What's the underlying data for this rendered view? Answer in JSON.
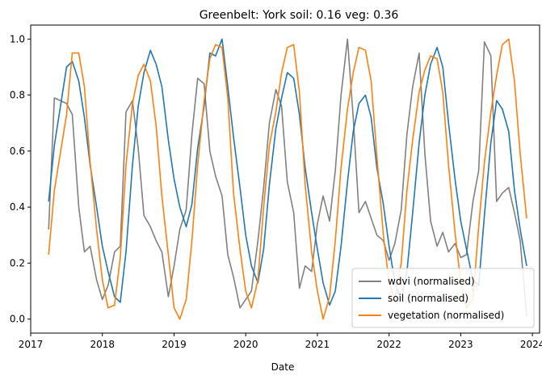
{
  "chart_data": {
    "type": "line",
    "title": "Greenbelt: York soil: 0.16    veg: 0.36",
    "xlabel": "Date",
    "ylabel": "",
    "xlim": [
      2017.0,
      2024.1
    ],
    "ylim": [
      -0.05,
      1.05
    ],
    "x_ticks": [
      2017,
      2018,
      2019,
      2020,
      2021,
      2022,
      2023,
      2024
    ],
    "y_ticks": [
      0.0,
      0.2,
      0.4,
      0.6,
      0.8,
      1.0
    ],
    "x_tick_labels": [
      "2017",
      "2018",
      "2019",
      "2020",
      "2021",
      "2022",
      "2023",
      "2024"
    ],
    "y_tick_labels": [
      "0.0",
      "0.2",
      "0.4",
      "0.6",
      "0.8",
      "1.0"
    ],
    "grid": false,
    "legend_position": "lower-right",
    "series": [
      {
        "name": "wdvi (normalised)",
        "color": "#808080",
        "points": [
          [
            2017.25,
            0.32
          ],
          [
            2017.33,
            0.79
          ],
          [
            2017.5,
            0.77
          ],
          [
            2017.58,
            0.73
          ],
          [
            2017.67,
            0.4
          ],
          [
            2017.75,
            0.24
          ],
          [
            2017.83,
            0.26
          ],
          [
            2017.92,
            0.14
          ],
          [
            2018.0,
            0.07
          ],
          [
            2018.08,
            0.12
          ],
          [
            2018.17,
            0.24
          ],
          [
            2018.25,
            0.26
          ],
          [
            2018.33,
            0.74
          ],
          [
            2018.42,
            0.78
          ],
          [
            2018.5,
            0.61
          ],
          [
            2018.58,
            0.37
          ],
          [
            2018.67,
            0.33
          ],
          [
            2018.75,
            0.28
          ],
          [
            2018.83,
            0.24
          ],
          [
            2018.92,
            0.08
          ],
          [
            2019.0,
            0.19
          ],
          [
            2019.08,
            0.32
          ],
          [
            2019.17,
            0.39
          ],
          [
            2019.25,
            0.66
          ],
          [
            2019.33,
            0.86
          ],
          [
            2019.42,
            0.84
          ],
          [
            2019.5,
            0.6
          ],
          [
            2019.58,
            0.51
          ],
          [
            2019.67,
            0.44
          ],
          [
            2019.75,
            0.23
          ],
          [
            2019.83,
            0.15
          ],
          [
            2019.92,
            0.04
          ],
          [
            2020.0,
            0.07
          ],
          [
            2020.08,
            0.1
          ],
          [
            2020.17,
            0.28
          ],
          [
            2020.25,
            0.47
          ],
          [
            2020.33,
            0.7
          ],
          [
            2020.42,
            0.82
          ],
          [
            2020.5,
            0.76
          ],
          [
            2020.58,
            0.49
          ],
          [
            2020.67,
            0.38
          ],
          [
            2020.75,
            0.11
          ],
          [
            2020.83,
            0.19
          ],
          [
            2020.92,
            0.17
          ],
          [
            2021.0,
            0.34
          ],
          [
            2021.08,
            0.44
          ],
          [
            2021.17,
            0.35
          ],
          [
            2021.25,
            0.53
          ],
          [
            2021.33,
            0.8
          ],
          [
            2021.42,
            1.0
          ],
          [
            2021.5,
            0.72
          ],
          [
            2021.58,
            0.38
          ],
          [
            2021.67,
            0.42
          ],
          [
            2021.75,
            0.36
          ],
          [
            2021.83,
            0.3
          ],
          [
            2021.92,
            0.28
          ],
          [
            2022.0,
            0.21
          ],
          [
            2022.08,
            0.27
          ],
          [
            2022.17,
            0.39
          ],
          [
            2022.25,
            0.66
          ],
          [
            2022.33,
            0.83
          ],
          [
            2022.42,
            0.95
          ],
          [
            2022.5,
            0.59
          ],
          [
            2022.58,
            0.35
          ],
          [
            2022.67,
            0.26
          ],
          [
            2022.75,
            0.31
          ],
          [
            2022.83,
            0.24
          ],
          [
            2022.92,
            0.27
          ],
          [
            2023.0,
            0.22
          ],
          [
            2023.08,
            0.23
          ],
          [
            2023.17,
            0.42
          ],
          [
            2023.25,
            0.53
          ],
          [
            2023.33,
            0.99
          ],
          [
            2023.42,
            0.94
          ],
          [
            2023.5,
            0.42
          ],
          [
            2023.58,
            0.45
          ],
          [
            2023.67,
            0.47
          ],
          [
            2023.75,
            0.38
          ],
          [
            2023.83,
            0.28
          ],
          [
            2023.92,
            0.01
          ]
        ]
      },
      {
        "name": "soil (normalised)",
        "color": "#1f77b4",
        "points": [
          [
            2017.25,
            0.42
          ],
          [
            2017.33,
            0.62
          ],
          [
            2017.5,
            0.9
          ],
          [
            2017.58,
            0.92
          ],
          [
            2017.67,
            0.85
          ],
          [
            2017.75,
            0.72
          ],
          [
            2017.83,
            0.55
          ],
          [
            2017.92,
            0.4
          ],
          [
            2018.0,
            0.26
          ],
          [
            2018.08,
            0.17
          ],
          [
            2018.17,
            0.08
          ],
          [
            2018.25,
            0.06
          ],
          [
            2018.33,
            0.24
          ],
          [
            2018.42,
            0.55
          ],
          [
            2018.5,
            0.76
          ],
          [
            2018.58,
            0.88
          ],
          [
            2018.67,
            0.96
          ],
          [
            2018.75,
            0.91
          ],
          [
            2018.83,
            0.83
          ],
          [
            2018.92,
            0.64
          ],
          [
            2019.0,
            0.5
          ],
          [
            2019.08,
            0.4
          ],
          [
            2019.17,
            0.33
          ],
          [
            2019.25,
            0.41
          ],
          [
            2019.33,
            0.61
          ],
          [
            2019.42,
            0.76
          ],
          [
            2019.5,
            0.95
          ],
          [
            2019.58,
            0.94
          ],
          [
            2019.67,
            1.0
          ],
          [
            2019.75,
            0.83
          ],
          [
            2019.83,
            0.65
          ],
          [
            2019.92,
            0.47
          ],
          [
            2020.0,
            0.3
          ],
          [
            2020.08,
            0.19
          ],
          [
            2020.17,
            0.13
          ],
          [
            2020.25,
            0.25
          ],
          [
            2020.33,
            0.48
          ],
          [
            2020.42,
            0.68
          ],
          [
            2020.5,
            0.79
          ],
          [
            2020.58,
            0.88
          ],
          [
            2020.67,
            0.86
          ],
          [
            2020.75,
            0.73
          ],
          [
            2020.83,
            0.54
          ],
          [
            2020.92,
            0.38
          ],
          [
            2021.0,
            0.25
          ],
          [
            2021.08,
            0.13
          ],
          [
            2021.17,
            0.05
          ],
          [
            2021.25,
            0.1
          ],
          [
            2021.33,
            0.26
          ],
          [
            2021.42,
            0.49
          ],
          [
            2021.5,
            0.67
          ],
          [
            2021.58,
            0.77
          ],
          [
            2021.67,
            0.8
          ],
          [
            2021.75,
            0.72
          ],
          [
            2021.83,
            0.54
          ],
          [
            2021.92,
            0.41
          ],
          [
            2022.0,
            0.26
          ],
          [
            2022.08,
            0.13
          ],
          [
            2022.17,
            0.07
          ],
          [
            2022.25,
            0.17
          ],
          [
            2022.33,
            0.38
          ],
          [
            2022.42,
            0.63
          ],
          [
            2022.5,
            0.8
          ],
          [
            2022.58,
            0.91
          ],
          [
            2022.67,
            0.97
          ],
          [
            2022.75,
            0.9
          ],
          [
            2022.83,
            0.7
          ],
          [
            2022.92,
            0.5
          ],
          [
            2023.0,
            0.35
          ],
          [
            2023.08,
            0.25
          ],
          [
            2023.17,
            0.14
          ],
          [
            2023.25,
            0.12
          ],
          [
            2023.33,
            0.37
          ],
          [
            2023.42,
            0.63
          ],
          [
            2023.5,
            0.78
          ],
          [
            2023.58,
            0.75
          ],
          [
            2023.67,
            0.67
          ],
          [
            2023.75,
            0.46
          ],
          [
            2023.83,
            0.32
          ],
          [
            2023.92,
            0.19
          ]
        ]
      },
      {
        "name": "vegetation (normalised)",
        "color": "#ff7f0e",
        "points": [
          [
            2017.25,
            0.23
          ],
          [
            2017.33,
            0.46
          ],
          [
            2017.5,
            0.73
          ],
          [
            2017.58,
            0.95
          ],
          [
            2017.67,
            0.95
          ],
          [
            2017.75,
            0.83
          ],
          [
            2017.83,
            0.56
          ],
          [
            2017.92,
            0.32
          ],
          [
            2018.0,
            0.14
          ],
          [
            2018.08,
            0.04
          ],
          [
            2018.17,
            0.05
          ],
          [
            2018.25,
            0.22
          ],
          [
            2018.33,
            0.55
          ],
          [
            2018.42,
            0.77
          ],
          [
            2018.5,
            0.87
          ],
          [
            2018.58,
            0.91
          ],
          [
            2018.67,
            0.85
          ],
          [
            2018.75,
            0.69
          ],
          [
            2018.83,
            0.44
          ],
          [
            2018.92,
            0.23
          ],
          [
            2019.0,
            0.04
          ],
          [
            2019.08,
            0.0
          ],
          [
            2019.17,
            0.07
          ],
          [
            2019.25,
            0.28
          ],
          [
            2019.33,
            0.55
          ],
          [
            2019.42,
            0.78
          ],
          [
            2019.5,
            0.93
          ],
          [
            2019.58,
            0.98
          ],
          [
            2019.67,
            0.97
          ],
          [
            2019.75,
            0.79
          ],
          [
            2019.83,
            0.45
          ],
          [
            2019.92,
            0.25
          ],
          [
            2020.0,
            0.1
          ],
          [
            2020.08,
            0.04
          ],
          [
            2020.17,
            0.14
          ],
          [
            2020.25,
            0.4
          ],
          [
            2020.33,
            0.62
          ],
          [
            2020.42,
            0.74
          ],
          [
            2020.5,
            0.88
          ],
          [
            2020.58,
            0.97
          ],
          [
            2020.67,
            0.98
          ],
          [
            2020.75,
            0.81
          ],
          [
            2020.83,
            0.48
          ],
          [
            2020.92,
            0.24
          ],
          [
            2021.0,
            0.1
          ],
          [
            2021.08,
            0.0
          ],
          [
            2021.17,
            0.08
          ],
          [
            2021.25,
            0.28
          ],
          [
            2021.33,
            0.54
          ],
          [
            2021.42,
            0.75
          ],
          [
            2021.5,
            0.88
          ],
          [
            2021.58,
            0.97
          ],
          [
            2021.67,
            0.96
          ],
          [
            2021.75,
            0.85
          ],
          [
            2021.83,
            0.58
          ],
          [
            2021.92,
            0.3
          ],
          [
            2022.0,
            0.13
          ],
          [
            2022.08,
            0.07
          ],
          [
            2022.17,
            0.2
          ],
          [
            2022.25,
            0.46
          ],
          [
            2022.33,
            0.64
          ],
          [
            2022.42,
            0.81
          ],
          [
            2022.5,
            0.89
          ],
          [
            2022.58,
            0.94
          ],
          [
            2022.67,
            0.93
          ],
          [
            2022.75,
            0.81
          ],
          [
            2022.83,
            0.55
          ],
          [
            2022.92,
            0.31
          ],
          [
            2023.0,
            0.13
          ],
          [
            2023.08,
            0.04
          ],
          [
            2023.17,
            0.07
          ],
          [
            2023.25,
            0.33
          ],
          [
            2023.33,
            0.56
          ],
          [
            2023.42,
            0.74
          ],
          [
            2023.5,
            0.87
          ],
          [
            2023.58,
            0.98
          ],
          [
            2023.67,
            1.0
          ],
          [
            2023.75,
            0.85
          ],
          [
            2023.83,
            0.59
          ],
          [
            2023.92,
            0.36
          ]
        ]
      }
    ]
  }
}
